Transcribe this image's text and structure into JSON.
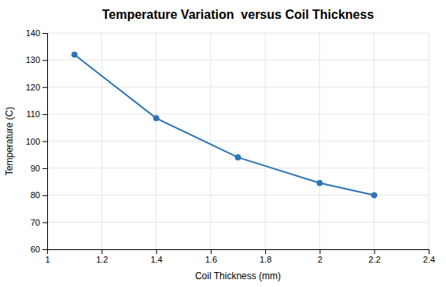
{
  "chart_data": {
    "type": "line",
    "title": "Temperature Variation  versus Coil Thickness",
    "xlabel": "Coil Thickness (mm)",
    "ylabel": "Temperature (C)",
    "x": [
      1.1,
      1.4,
      1.7,
      2.0,
      2.2
    ],
    "values": [
      132,
      108.5,
      94,
      84.5,
      80
    ],
    "color": "#2E75B6",
    "marker": "circle",
    "xlim": [
      1.0,
      2.4
    ],
    "ylim": [
      60,
      140
    ],
    "xticks": [
      1,
      1.2,
      1.4,
      1.6,
      1.8,
      2,
      2.2,
      2.4
    ],
    "yticks": [
      60,
      70,
      80,
      90,
      100,
      110,
      120,
      130,
      140
    ],
    "grid": true
  }
}
